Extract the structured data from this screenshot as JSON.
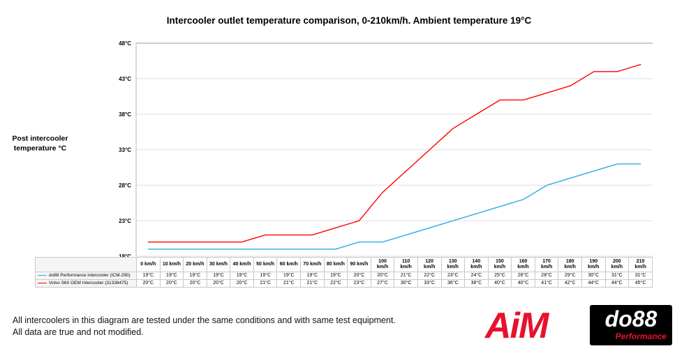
{
  "title": "Intercooler outlet temperature comparison, 0-210km/h. Ambient temperature 19°C",
  "y_axis": {
    "label_line1": "Post intercooler",
    "label_line2": "temperature °C"
  },
  "chart_data": {
    "type": "line",
    "unit": "°C",
    "categories": [
      "0 km/h",
      "10 km/h",
      "20 km/h",
      "30 km/h",
      "40 km/h",
      "50 km/h",
      "60 km/h",
      "70 km/h",
      "80 km/h",
      "90 km/h",
      "100 km/h",
      "110 km/h",
      "120 km/h",
      "130 km/h",
      "140 km/h",
      "150 km/h",
      "160 km/h",
      "170 km/h",
      "180 km/h",
      "190 km/h",
      "200 km/h",
      "210 km/h"
    ],
    "series": [
      {
        "name": "do88 Performance intercooler (ICM-290)",
        "color": "#29abe2",
        "values": [
          19,
          19,
          19,
          19,
          19,
          19,
          19,
          19,
          19,
          20,
          20,
          21,
          22,
          23,
          24,
          25,
          26,
          28,
          29,
          30,
          31,
          31
        ]
      },
      {
        "name": "Volvo S60 OEM Intercooler (31338475)",
        "color": "#ff0000",
        "values": [
          20,
          20,
          20,
          20,
          20,
          21,
          21,
          21,
          22,
          23,
          27,
          30,
          33,
          36,
          38,
          40,
          40,
          41,
          42,
          44,
          44,
          45
        ]
      }
    ],
    "title": "Intercooler outlet temperature comparison, 0-210km/h. Ambient temperature 19°C",
    "xlabel": "",
    "ylabel": "Post intercooler temperature °C",
    "ylim": [
      18,
      48
    ],
    "ytick_step": 5,
    "yticks": [
      "18°C",
      "23°C",
      "28°C",
      "33°C",
      "38°C",
      "43°C",
      "48°C"
    ],
    "grid": true,
    "legend_position": "table-left"
  },
  "footer": {
    "line1": "All intercoolers in this diagram are tested under the same conditions and with same test equipment.",
    "line2": "All data are true and not modified."
  },
  "logos": {
    "aim": "AiM",
    "do88": "do88",
    "do88_sub": "Performance"
  }
}
